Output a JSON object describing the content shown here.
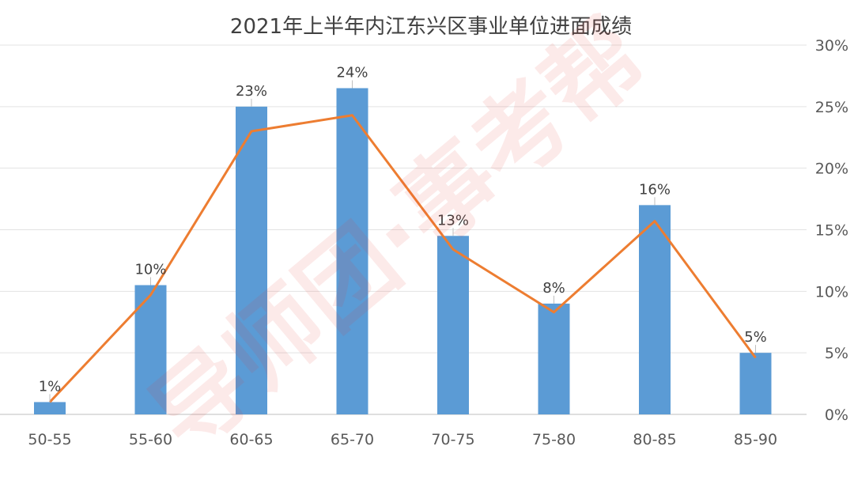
{
  "chart_data": {
    "type": "bar",
    "title": "2021年上半年内江东兴区事业单位进面成绩",
    "xlabel": "",
    "ylabel": "",
    "categories": [
      "50-55",
      "55-60",
      "60-65",
      "65-70",
      "70-75",
      "75-80",
      "80-85",
      "85-90"
    ],
    "series": [
      {
        "type": "bar",
        "values": [
          1,
          10.5,
          25,
          26.5,
          14.5,
          9,
          17,
          5
        ],
        "color": "#5B9BD5"
      },
      {
        "type": "line",
        "values": [
          1,
          9.7,
          23,
          24.3,
          13.4,
          8.3,
          15.7,
          4.6
        ],
        "color": "#ED7D31"
      }
    ],
    "data_labels": [
      "1%",
      "10%",
      "23%",
      "24%",
      "13%",
      "8%",
      "16%",
      "5%"
    ],
    "y_ticks": [
      "0%",
      "5%",
      "10%",
      "15%",
      "20%",
      "25%",
      "30%"
    ],
    "ylim": [
      0,
      30
    ],
    "y_axis_side": "right",
    "grid": true,
    "legend": "none"
  },
  "watermark": "导师团·事考帮"
}
